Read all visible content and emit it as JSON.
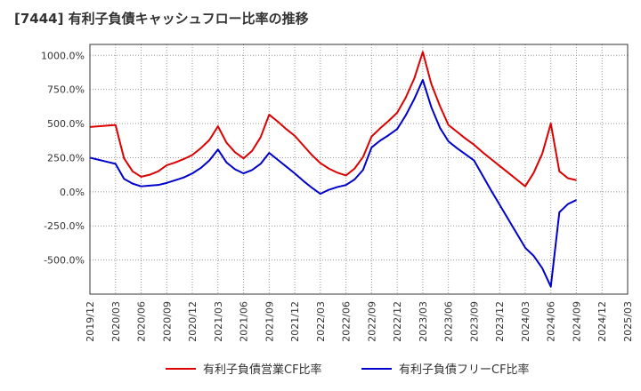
{
  "chart_data": {
    "type": "line",
    "title": "[7444]  有利子負債キャッシュフロー比率の推移",
    "xlabel": "",
    "ylabel": "",
    "ylim": [
      -750,
      1080
    ],
    "yticks": [
      1000,
      750,
      500,
      250,
      0,
      -250,
      -500
    ],
    "ytick_labels": [
      "1000.0%",
      "750.0%",
      "500.0%",
      "250.0%",
      "0.0%",
      "-250.0%",
      "-500.0%"
    ],
    "x_tick_labels": [
      "2019/12",
      "2020/03",
      "2020/06",
      "2020/09",
      "2020/12",
      "2021/03",
      "2021/06",
      "2021/09",
      "2021/12",
      "2022/03",
      "2022/06",
      "2022/09",
      "2022/12",
      "2023/03",
      "2023/06",
      "2023/09",
      "2023/12",
      "2024/03",
      "2024/06",
      "2024/09",
      "2024/12",
      "2025/03"
    ],
    "grid": true,
    "legend_position": "bottom",
    "series": [
      {
        "name": "有利子負債営業CF比率",
        "color": "#dd0000",
        "points": [
          [
            "2019/12",
            475
          ],
          [
            "2020/01",
            480
          ],
          [
            "2020/02",
            485
          ],
          [
            "2020/03",
            490
          ],
          [
            "2020/04",
            245
          ],
          [
            "2020/05",
            150
          ],
          [
            "2020/06",
            110
          ],
          [
            "2020/07",
            125
          ],
          [
            "2020/08",
            150
          ],
          [
            "2020/09",
            195
          ],
          [
            "2020/10",
            215
          ],
          [
            "2020/11",
            240
          ],
          [
            "2020/12",
            270
          ],
          [
            "2021/01",
            320
          ],
          [
            "2021/02",
            380
          ],
          [
            "2021/03",
            480
          ],
          [
            "2021/04",
            360
          ],
          [
            "2021/05",
            290
          ],
          [
            "2021/06",
            245
          ],
          [
            "2021/07",
            300
          ],
          [
            "2021/08",
            400
          ],
          [
            "2021/09",
            565
          ],
          [
            "2021/10",
            515
          ],
          [
            "2021/11",
            460
          ],
          [
            "2021/12",
            410
          ],
          [
            "2022/01",
            340
          ],
          [
            "2022/02",
            270
          ],
          [
            "2022/03",
            210
          ],
          [
            "2022/04",
            170
          ],
          [
            "2022/05",
            140
          ],
          [
            "2022/06",
            120
          ],
          [
            "2022/07",
            170
          ],
          [
            "2022/08",
            255
          ],
          [
            "2022/09",
            405
          ],
          [
            "2022/10",
            465
          ],
          [
            "2022/11",
            520
          ],
          [
            "2022/12",
            580
          ],
          [
            "2023/01",
            690
          ],
          [
            "2023/02",
            830
          ],
          [
            "2023/03",
            1025
          ],
          [
            "2023/04",
            790
          ],
          [
            "2023/05",
            630
          ],
          [
            "2023/06",
            490
          ],
          [
            "2023/07",
            440
          ],
          [
            "2023/08",
            390
          ],
          [
            "2023/09",
            345
          ],
          [
            "2023/10",
            290
          ],
          [
            "2023/11",
            240
          ],
          [
            "2023/12",
            190
          ],
          [
            "2024/01",
            140
          ],
          [
            "2024/02",
            90
          ],
          [
            "2024/03",
            40
          ],
          [
            "2024/04",
            140
          ],
          [
            "2024/05",
            280
          ],
          [
            "2024/06",
            500
          ],
          [
            "2024/07",
            150
          ],
          [
            "2024/08",
            100
          ],
          [
            "2024/09",
            85
          ]
        ]
      },
      {
        "name": "有利子負債フリーCF比率",
        "color": "#0000cc",
        "points": [
          [
            "2019/12",
            250
          ],
          [
            "2020/01",
            235
          ],
          [
            "2020/02",
            220
          ],
          [
            "2020/03",
            205
          ],
          [
            "2020/04",
            95
          ],
          [
            "2020/05",
            60
          ],
          [
            "2020/06",
            40
          ],
          [
            "2020/07",
            45
          ],
          [
            "2020/08",
            50
          ],
          [
            "2020/09",
            65
          ],
          [
            "2020/10",
            85
          ],
          [
            "2020/11",
            105
          ],
          [
            "2020/12",
            135
          ],
          [
            "2021/01",
            175
          ],
          [
            "2021/02",
            230
          ],
          [
            "2021/03",
            310
          ],
          [
            "2021/04",
            215
          ],
          [
            "2021/05",
            165
          ],
          [
            "2021/06",
            135
          ],
          [
            "2021/07",
            160
          ],
          [
            "2021/08",
            205
          ],
          [
            "2021/09",
            285
          ],
          [
            "2021/10",
            235
          ],
          [
            "2021/11",
            185
          ],
          [
            "2021/12",
            135
          ],
          [
            "2022/01",
            80
          ],
          [
            "2022/02",
            30
          ],
          [
            "2022/03",
            -15
          ],
          [
            "2022/04",
            15
          ],
          [
            "2022/05",
            35
          ],
          [
            "2022/06",
            50
          ],
          [
            "2022/07",
            90
          ],
          [
            "2022/08",
            160
          ],
          [
            "2022/09",
            325
          ],
          [
            "2022/10",
            375
          ],
          [
            "2022/11",
            415
          ],
          [
            "2022/12",
            460
          ],
          [
            "2023/01",
            560
          ],
          [
            "2023/02",
            680
          ],
          [
            "2023/03",
            820
          ],
          [
            "2023/04",
            620
          ],
          [
            "2023/05",
            470
          ],
          [
            "2023/06",
            370
          ],
          [
            "2023/07",
            320
          ],
          [
            "2023/08",
            275
          ],
          [
            "2023/09",
            230
          ],
          [
            "2023/10",
            120
          ],
          [
            "2023/11",
            10
          ],
          [
            "2023/12",
            -95
          ],
          [
            "2024/01",
            -200
          ],
          [
            "2024/02",
            -305
          ],
          [
            "2024/03",
            -410
          ],
          [
            "2024/04",
            -470
          ],
          [
            "2024/05",
            -560
          ],
          [
            "2024/06",
            -695
          ],
          [
            "2024/07",
            -150
          ],
          [
            "2024/08",
            -90
          ],
          [
            "2024/09",
            -60
          ]
        ]
      }
    ]
  }
}
